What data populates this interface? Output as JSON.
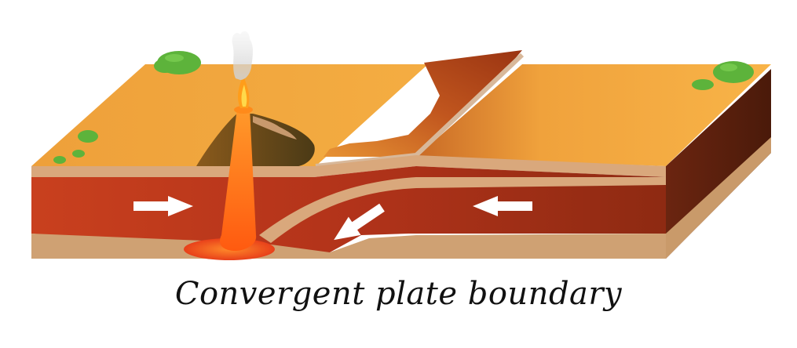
{
  "caption": "Convergent plate boundary",
  "diagram": {
    "colors": {
      "surface": "#f1a43c",
      "surface_light": "#f7b445",
      "crust_top_edge": "#d9a77a",
      "mantle_red": "#b8361a",
      "mantle_dark": "#7a2410",
      "lower_layer": "#cfa173",
      "side_face": "#5a200d",
      "lava": "#ff6a1a",
      "volcano": "#6b4a1c",
      "plant": "#5db33b",
      "arrow": "#ffffff"
    },
    "arrows": [
      {
        "name": "left-plate-arrow",
        "direction": "right"
      },
      {
        "name": "right-plate-arrow",
        "direction": "left"
      },
      {
        "name": "subduction-arrow",
        "direction": "down-left"
      }
    ],
    "icons": [
      "volcano-icon",
      "lava-icon",
      "smoke-icon",
      "bush-icon"
    ]
  }
}
